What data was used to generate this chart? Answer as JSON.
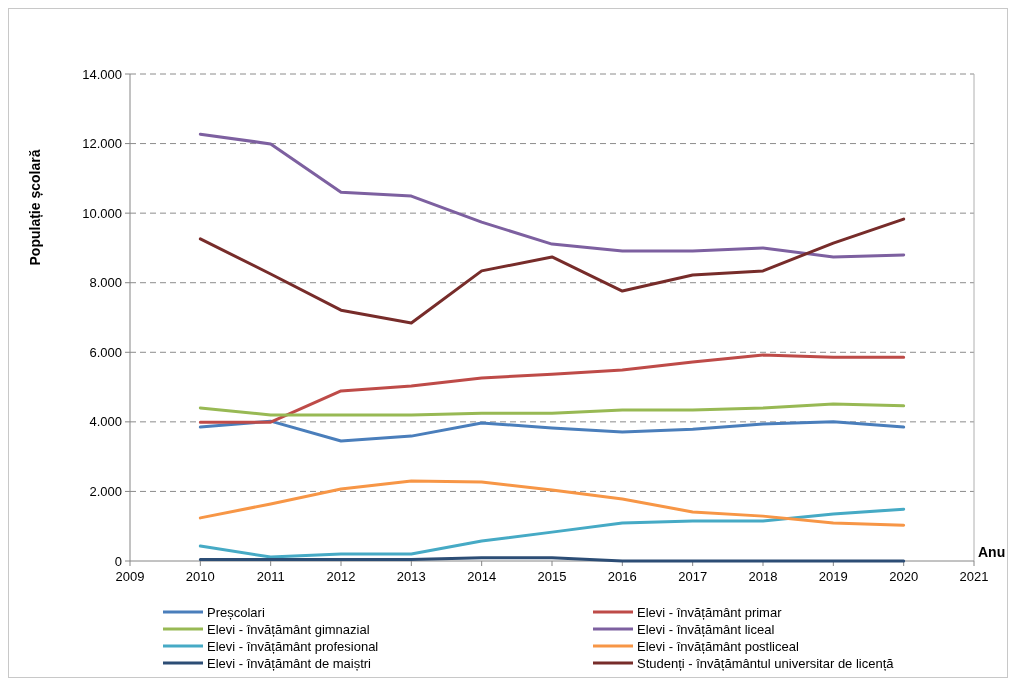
{
  "chart_data": {
    "type": "line",
    "xlabel": "Anu",
    "ylabel": "Populație școlară",
    "x": [
      2010,
      2011,
      2012,
      2013,
      2014,
      2015,
      2016,
      2017,
      2018,
      2019,
      2020
    ],
    "xlim": [
      2009,
      2021
    ],
    "xticks": [
      2009,
      2010,
      2011,
      2012,
      2013,
      2014,
      2015,
      2016,
      2017,
      2018,
      2019,
      2020,
      2021
    ],
    "ylim": [
      0,
      14000
    ],
    "yticks": [
      {
        "value": 0,
        "label": "0"
      },
      {
        "value": 2000,
        "label": "2.000"
      },
      {
        "value": 4000,
        "label": "4.000"
      },
      {
        "value": 6000,
        "label": "6.000"
      },
      {
        "value": 8000,
        "label": "8.000"
      },
      {
        "value": 10000,
        "label": "10.000"
      },
      {
        "value": 12000,
        "label": "12.000"
      },
      {
        "value": 14000,
        "label": "14.000"
      }
    ],
    "grid": "y",
    "legend": "bottom",
    "marker": "none",
    "line_style": "solid",
    "series": [
      {
        "name": "Preșcolari",
        "color": "#4a7ebb",
        "values": [
          3850,
          4020,
          3450,
          3590,
          3970,
          3820,
          3710,
          3790,
          3940,
          4000,
          3850
        ]
      },
      {
        "name": "Elevi - învățământ primar",
        "color": "#be4b48",
        "values": [
          3990,
          3990,
          4890,
          5030,
          5260,
          5370,
          5490,
          5720,
          5920,
          5860,
          5860
        ]
      },
      {
        "name": "Elevi - învățământ gimnazial",
        "color": "#98b954",
        "values": [
          4400,
          4200,
          4200,
          4200,
          4250,
          4250,
          4340,
          4340,
          4400,
          4510,
          4460
        ]
      },
      {
        "name": "Elevi - învățământ liceal",
        "color": "#7d60a0",
        "values": [
          12270,
          11990,
          10600,
          10490,
          9740,
          9110,
          8910,
          8910,
          9000,
          8740,
          8800
        ]
      },
      {
        "name": "Elevi - învățământ profesional",
        "color": "#46aac5",
        "values": [
          430,
          115,
          200,
          200,
          575,
          830,
          1090,
          1150,
          1150,
          1350,
          1490
        ]
      },
      {
        "name": "Elevi - învățământ postliceal",
        "color": "#f79646",
        "values": [
          1240,
          1640,
          2070,
          2300,
          2270,
          2040,
          1780,
          1410,
          1290,
          1090,
          1030
        ]
      },
      {
        "name": "Elevi - învățământ de maiștri",
        "color": "#2c4d75",
        "values": [
          40,
          40,
          40,
          40,
          90,
          90,
          0,
          0,
          0,
          0,
          0
        ]
      },
      {
        "name": "Studenți - învățământul universitar de licență",
        "color": "#772c2a",
        "values": [
          9260,
          8250,
          7210,
          6840,
          8340,
          8740,
          7760,
          8220,
          8340,
          9140,
          9830
        ]
      }
    ]
  }
}
